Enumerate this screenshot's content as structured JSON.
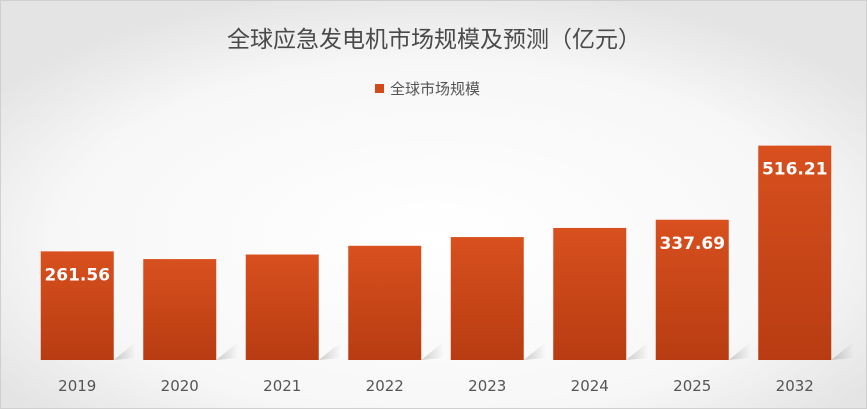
{
  "chart_data": {
    "type": "bar",
    "title": "全球应急发电机市场规模及预测（亿元）",
    "legend": {
      "position": "top-center",
      "entries": [
        "全球市场规模"
      ]
    },
    "categories": [
      "2019",
      "2020",
      "2021",
      "2022",
      "2023",
      "2024",
      "2025",
      "2032"
    ],
    "series": [
      {
        "name": "全球市场规模",
        "color": "#d04a1a",
        "values": [
          261.56,
          243,
          254,
          275,
          296,
          318,
          337.69,
          516.21
        ],
        "data_labels": [
          "261.56",
          "",
          "",
          "",
          "",
          "",
          "337.69",
          "516.21"
        ]
      }
    ],
    "xlabel": "",
    "ylabel": "",
    "ylim": [
      0,
      720
    ],
    "grid": false,
    "y_axis_visible": false
  }
}
